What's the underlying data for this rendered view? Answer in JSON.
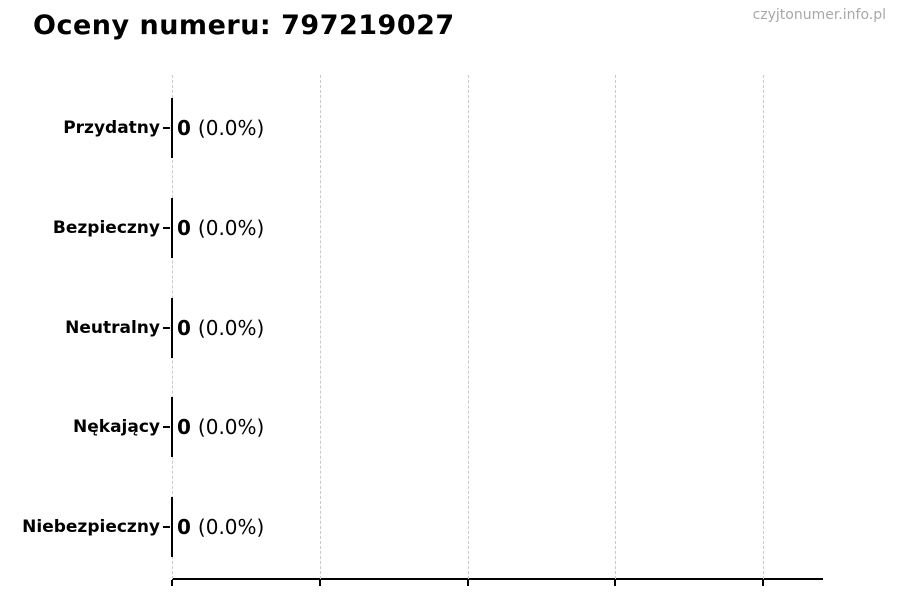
{
  "page": {
    "watermark": "czyjtonumer.info.pl"
  },
  "chart_data": {
    "type": "bar",
    "orientation": "horizontal",
    "title": "Oceny numeru: 797219027",
    "categories": [
      "Przydatny",
      "Bezpieczny",
      "Neutralny",
      "Nękający",
      "Niebezpieczny"
    ],
    "values": [
      0,
      0,
      0,
      0,
      0
    ],
    "value_labels": [
      "0 (0.0%)",
      "0 (0.0%)",
      "0 (0.0%)",
      "0 (0.0%)",
      "0 (0.0%)"
    ],
    "rows": [
      {
        "category": "Przydatny",
        "value": "0",
        "percent": "(0.0%)"
      },
      {
        "category": "Bezpieczny",
        "value": "0",
        "percent": "(0.0%)"
      },
      {
        "category": "Neutralny",
        "value": "0",
        "percent": "(0.0%)"
      },
      {
        "category": "Nękający",
        "value": "0",
        "percent": "(0.0%)"
      },
      {
        "category": "Niebezpieczny",
        "value": "0",
        "percent": "(0.0%)"
      }
    ],
    "x_tick_count": 5,
    "x_tick_labels": [],
    "xlabel": "",
    "ylabel": "",
    "grid": "vertical-dashed",
    "legend": "none",
    "colors": {
      "bar_edge": "#000000",
      "grid": "#c9c9c9",
      "axis": "#000000",
      "text": "#000000",
      "watermark": "#a8a8a8"
    }
  }
}
